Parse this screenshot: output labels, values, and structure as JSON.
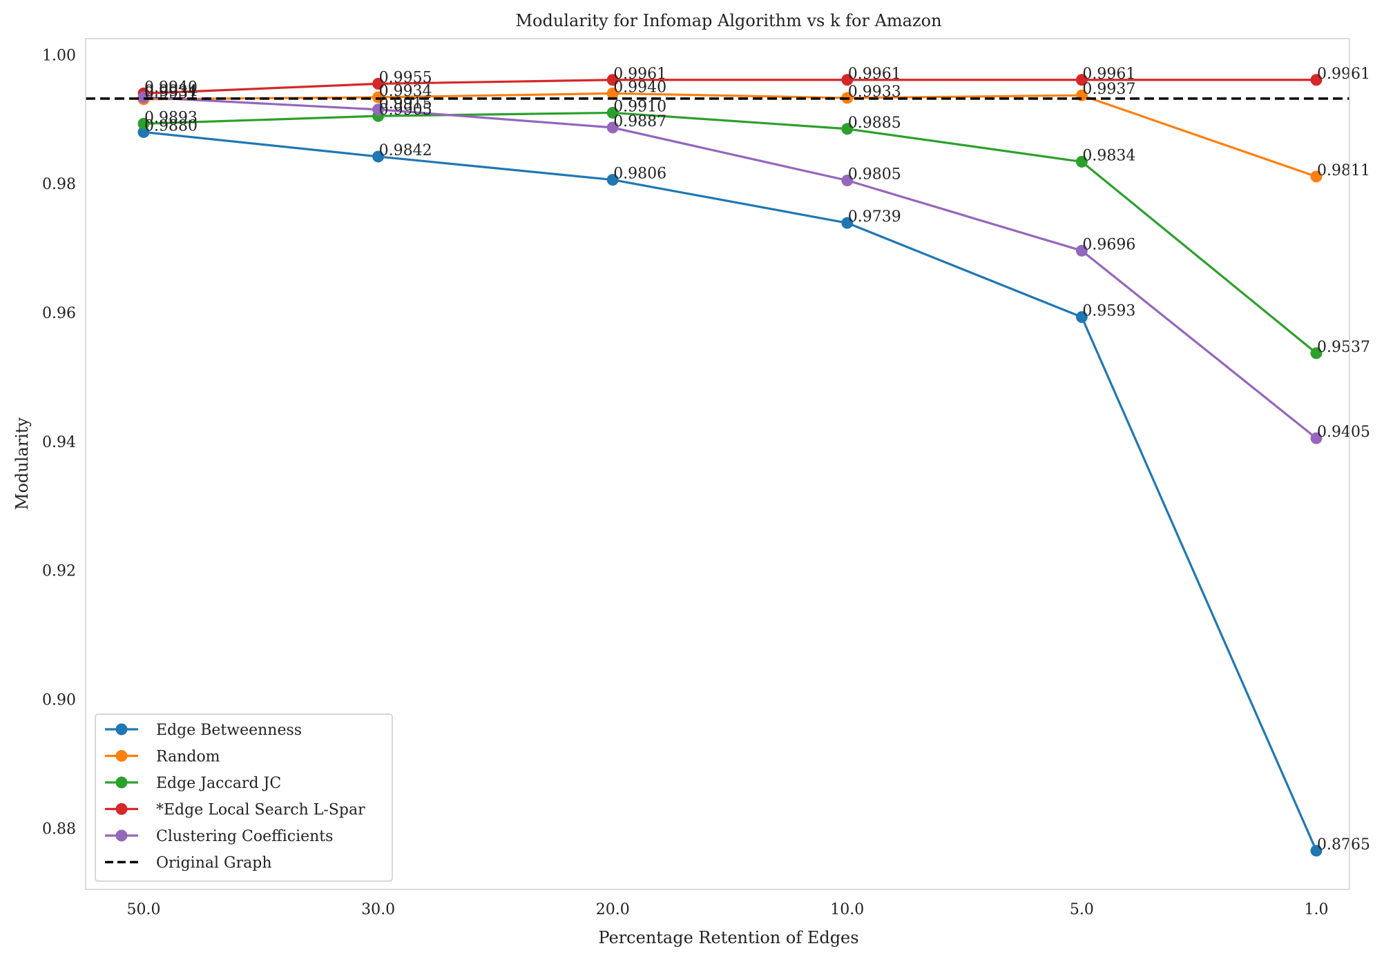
{
  "chart_data": {
    "type": "line",
    "title": "Modularity for Infomap Algorithm vs k for Amazon",
    "xlabel": "Percentage Retention of Edges",
    "ylabel": "Modularity",
    "categories": [
      "50.0",
      "30.0",
      "20.0",
      "10.0",
      "5.0",
      "1.0"
    ],
    "ylim": [
      0.8705,
      1.0025
    ],
    "yticks": [
      "0.88",
      "0.90",
      "0.92",
      "0.94",
      "0.96",
      "0.98",
      "1.00"
    ],
    "grid": false,
    "legend_position": "lower-left",
    "series": [
      {
        "name": "Edge Betweenness",
        "color": "#1f77b4",
        "style": "solid-marker",
        "values": [
          0.988,
          0.9842,
          0.9806,
          0.9739,
          0.9593,
          0.8765
        ],
        "labels": [
          "0.9880",
          "0.9842",
          "0.9806",
          "0.9739",
          "0.9593",
          "0.8765"
        ]
      },
      {
        "name": "Random",
        "color": "#ff7f0e",
        "style": "solid-marker",
        "values": [
          0.9931,
          0.9934,
          0.994,
          0.9933,
          0.9937,
          0.9811
        ],
        "labels": [
          "0.9931",
          "0.9934",
          "0.9940",
          "0.9933",
          "0.9937",
          "0.9811"
        ]
      },
      {
        "name": "Edge Jaccard JC",
        "color": "#2ca02c",
        "style": "solid-marker",
        "values": [
          0.9893,
          0.9905,
          0.991,
          0.9885,
          0.9834,
          0.9537
        ],
        "labels": [
          "0.9893",
          "0.9905",
          "0.9910",
          "0.9885",
          "0.9834",
          "0.9537"
        ]
      },
      {
        "name": "*Edge Local Search L-Spar",
        "color": "#d62728",
        "style": "solid-marker",
        "values": [
          0.994,
          0.9955,
          0.9961,
          0.9961,
          0.9961,
          0.9961
        ],
        "labels": [
          "0.9940",
          "0.9955",
          "0.9961",
          "0.9961",
          "0.9961",
          "0.9961"
        ]
      },
      {
        "name": "Clustering Coefficients",
        "color": "#9467bd",
        "style": "solid-marker",
        "values": [
          0.9934,
          0.9915,
          0.9887,
          0.9805,
          0.9696,
          0.9405
        ],
        "labels": [
          "0.9934",
          "0.9915",
          "0.9887",
          "0.9805",
          "0.9696",
          "0.9405"
        ]
      },
      {
        "name": "Original Graph",
        "color": "#000000",
        "style": "dashed",
        "hline": 0.9932
      }
    ]
  }
}
